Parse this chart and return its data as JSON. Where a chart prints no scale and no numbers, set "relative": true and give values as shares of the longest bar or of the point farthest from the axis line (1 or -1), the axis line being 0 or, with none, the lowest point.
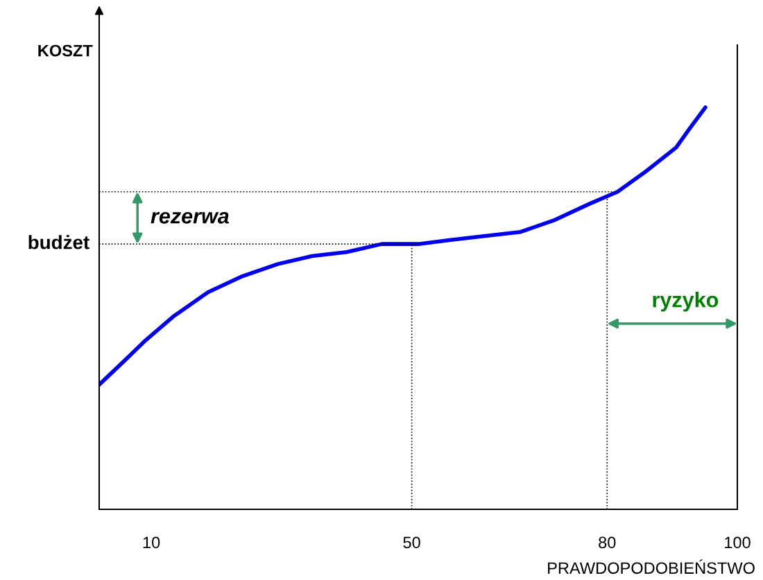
{
  "chart_data": {
    "type": "line",
    "relative": true,
    "ylabel": "KOSZT",
    "xlabel": "PRAWDOPODOBIEŃSTWO",
    "xlim": [
      2,
      100
    ],
    "xticks": [
      10,
      50,
      80,
      100
    ],
    "grid": false,
    "legend": false,
    "marker": "none",
    "line_style": "solid",
    "series": [
      {
        "color": "#0000ee",
        "x": [
          2,
          5.9,
          9.1,
          13.4,
          18.7,
          24.0,
          29.4,
          34.7,
          40.0,
          45.4,
          51.0,
          56.0,
          61.3,
          66.7,
          72.0,
          77.3,
          81.6,
          85.9,
          90.6,
          92.8,
          95.1
        ],
        "values": [
          0.31,
          0.37,
          0.42,
          0.48,
          0.54,
          0.58,
          0.61,
          0.63,
          0.64,
          0.66,
          0.66,
          0.67,
          0.68,
          0.69,
          0.72,
          0.76,
          0.79,
          0.84,
          0.9,
          0.95,
          1.0
        ]
      }
    ],
    "ref_lines": [
      {
        "axis": "y",
        "value": 0.66,
        "label": "budżet",
        "color": "#000000",
        "line_style": "dotted"
      },
      {
        "axis": "y",
        "value": 0.79,
        "label": null,
        "color": "#000000",
        "line_style": "dotted"
      },
      {
        "axis": "x",
        "value": 50,
        "label": null,
        "color": "#000000",
        "line_style": "dotted"
      },
      {
        "axis": "x",
        "value": 80,
        "label": null,
        "color": "#000000",
        "line_style": "dotted"
      }
    ],
    "annotations": [
      "rezerwa",
      "ryzyko"
    ]
  }
}
